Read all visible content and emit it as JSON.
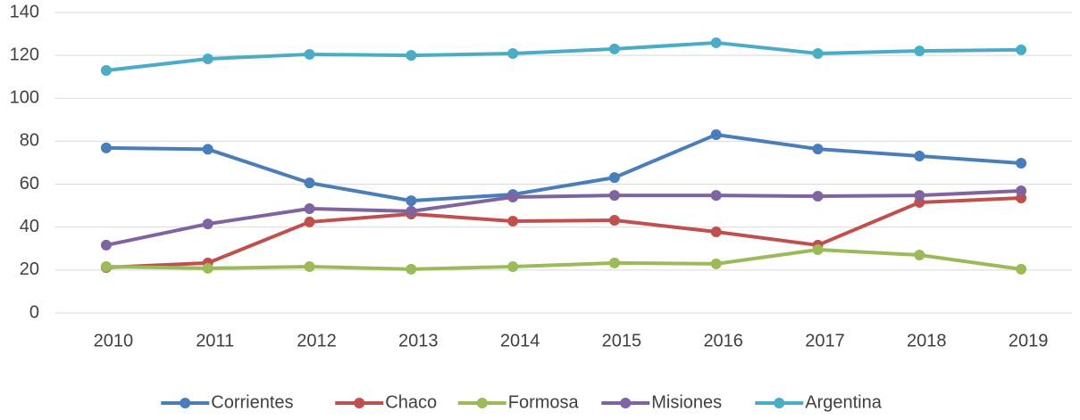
{
  "chart_data": {
    "type": "line",
    "categories": [
      "2010",
      "2011",
      "2012",
      "2013",
      "2014",
      "2015",
      "2016",
      "2017",
      "2018",
      "2019"
    ],
    "series": [
      {
        "name": "Corrientes",
        "color": "#4a7ebb",
        "values": [
          76.9,
          76.3,
          60.6,
          52.3,
          55.2,
          63.1,
          83.1,
          76.4,
          73.1,
          69.8
        ]
      },
      {
        "name": "Chaco",
        "color": "#c0504d",
        "values": [
          21.2,
          23.3,
          42.4,
          46.1,
          42.8,
          43.2,
          37.8,
          31.6,
          51.5,
          53.6
        ]
      },
      {
        "name": "Formosa",
        "color": "#9bbb59",
        "values": [
          21.6,
          20.8,
          21.6,
          20.4,
          21.6,
          23.3,
          22.9,
          29.5,
          27,
          20.4
        ]
      },
      {
        "name": "Misiones",
        "color": "#8064a2",
        "values": [
          31.6,
          41.5,
          48.6,
          47.4,
          54,
          54.8,
          54.8,
          54.4,
          54.8,
          56.9
        ]
      },
      {
        "name": "Argentina",
        "color": "#4bacc6",
        "values": [
          113,
          118.4,
          120.5,
          120,
          120.9,
          123,
          125.9,
          120.9,
          122.1,
          122.6
        ]
      }
    ],
    "ylim": [
      0,
      140
    ],
    "yticks": [
      0,
      20,
      40,
      60,
      80,
      100,
      120,
      140
    ],
    "grid": true,
    "legend": "bottom"
  }
}
